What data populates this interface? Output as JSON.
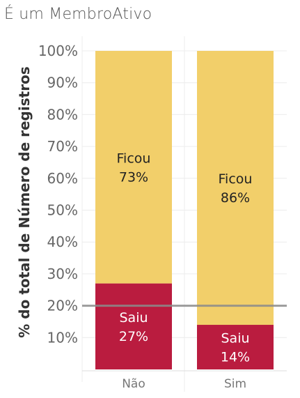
{
  "chart_data": {
    "type": "bar",
    "stacked": true,
    "title": "É um MembroAtivo",
    "ylabel": "% do total de Número de registros",
    "xlabel": "",
    "categories": [
      "Não",
      "Sim"
    ],
    "series": [
      {
        "name": "Saiu",
        "values": [
          27,
          14
        ],
        "color": "#BA1C3F",
        "labels": [
          "Saiu\n27%",
          "Saiu\n14%"
        ]
      },
      {
        "name": "Ficou",
        "values": [
          73,
          86
        ],
        "color": "#F2CF6A",
        "labels": [
          "Ficou\n73%",
          "Ficou\n86%"
        ]
      }
    ],
    "ylim": [
      0,
      100
    ],
    "yticks": [
      10,
      20,
      30,
      40,
      50,
      60,
      70,
      80,
      90,
      100
    ],
    "ytick_labels": [
      "10%",
      "20%",
      "30%",
      "40%",
      "50%",
      "60%",
      "70%",
      "80%",
      "90%",
      "100%"
    ],
    "reference_line": {
      "value": 20,
      "color": "#8C8C8C"
    },
    "grid": true,
    "legend": "none"
  }
}
